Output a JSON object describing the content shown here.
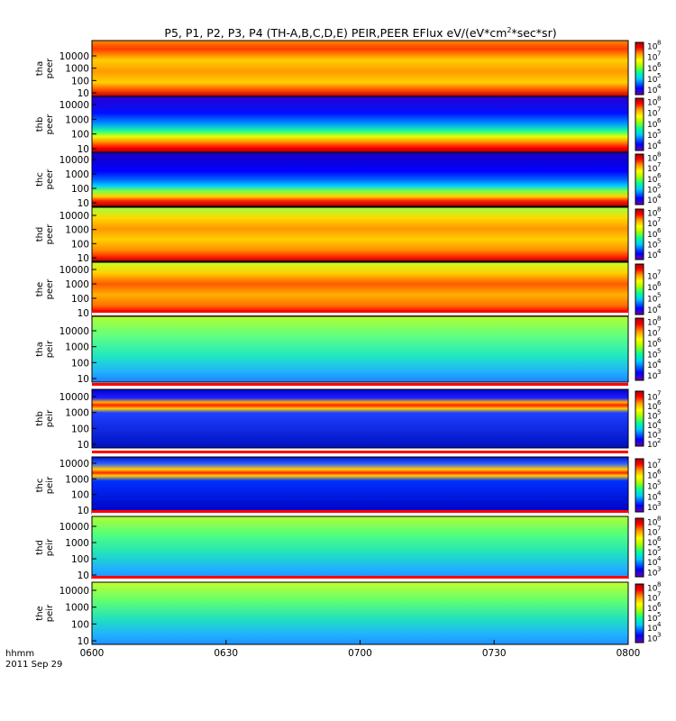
{
  "title_parts": {
    "main": "P5, P1, P2, P3, P4 (TH-A,B,C,D,E) PEIR,PEER EFlux eV/(eV*cm",
    "sup": "2",
    "tail": "*sec*sr)"
  },
  "xaxis": {
    "tick_labels": [
      "0600",
      "0630",
      "0700",
      "0730",
      "0800"
    ],
    "unit_label": "hhmm",
    "date_label": "2011 Sep 29"
  },
  "chart_data": {
    "type": "heatmap",
    "title": "P5, P1, P2, P3, P4 (TH-A,B,C,D,E) PEIR,PEER EFlux eV/(eV*cm2*sec*sr)",
    "x_range": [
      "06:00",
      "08:00"
    ],
    "x_ticks": [
      "0600",
      "0630",
      "0700",
      "0730",
      "0800"
    ],
    "y_scale": "log",
    "y_ticks": [
      10,
      100,
      1000,
      10000
    ],
    "colorbar_scale": "log",
    "colormap": [
      "#6b00a8",
      "#0000ff",
      "#00c8ff",
      "#00ff9a",
      "#a8ff00",
      "#ffff00",
      "#ff9d00",
      "#ff0000",
      "#a80000"
    ],
    "panels": [
      {
        "probe": "tha",
        "species": "peer",
        "cb_exp": [
          8,
          7,
          6,
          5,
          4
        ],
        "cb_lo": 3.5,
        "cb_hi": 8.3
      },
      {
        "probe": "thb",
        "species": "peer",
        "cb_exp": [
          8,
          7,
          6,
          5,
          4
        ],
        "cb_lo": 3.5,
        "cb_hi": 8.3
      },
      {
        "probe": "thc",
        "species": "peer",
        "cb_exp": [
          8,
          7,
          6,
          5,
          4
        ],
        "cb_lo": 3.5,
        "cb_hi": 8.3
      },
      {
        "probe": "thd",
        "species": "peer",
        "cb_exp": [
          8,
          7,
          6,
          5,
          4
        ],
        "cb_lo": 3.5,
        "cb_hi": 8.3
      },
      {
        "probe": "the",
        "species": "peer",
        "cb_exp": [
          7,
          6,
          5,
          4
        ],
        "cb_lo": 3.5,
        "cb_hi": 8.0
      },
      {
        "probe": "tha",
        "species": "peir",
        "cb_exp": [
          8,
          7,
          6,
          5,
          4,
          3
        ],
        "cb_lo": 2.5,
        "cb_hi": 8.3
      },
      {
        "probe": "thb",
        "species": "peir",
        "cb_exp": [
          7,
          6,
          5,
          4,
          3,
          2
        ],
        "cb_lo": 1.7,
        "cb_hi": 7.5
      },
      {
        "probe": "thc",
        "species": "peir",
        "cb_exp": [
          7,
          6,
          5,
          4,
          3
        ],
        "cb_lo": 2.5,
        "cb_hi": 7.5
      },
      {
        "probe": "thd",
        "species": "peir",
        "cb_exp": [
          8,
          7,
          6,
          5,
          4,
          3
        ],
        "cb_lo": 2.5,
        "cb_hi": 8.3
      },
      {
        "probe": "the",
        "species": "peir",
        "cb_exp": [
          8,
          7,
          6,
          5,
          4,
          3
        ],
        "cb_lo": 2.5,
        "cb_hi": 8.3
      }
    ]
  }
}
